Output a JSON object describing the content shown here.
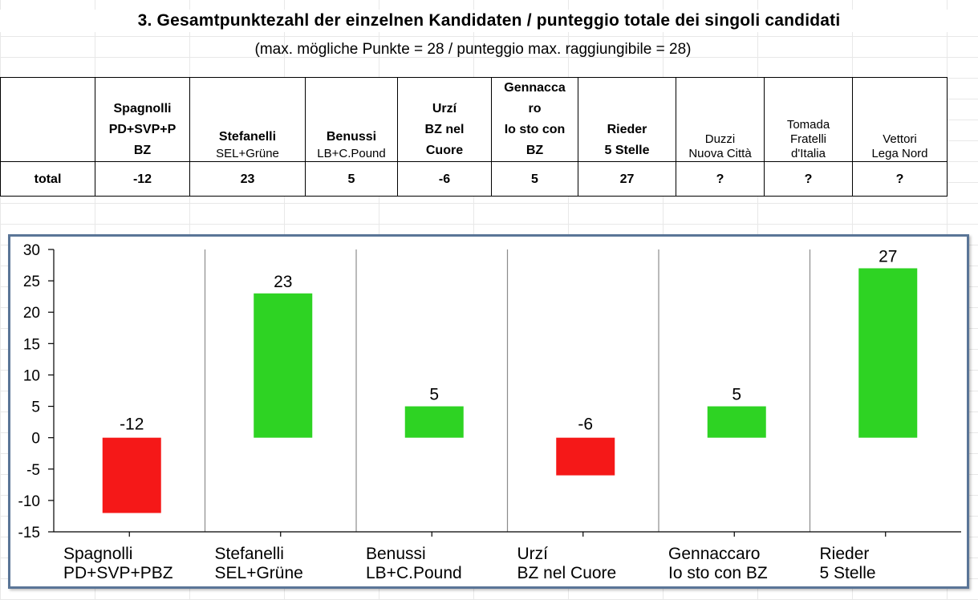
{
  "header": {
    "title": "3.  Gesamtpunktezahl der einzelnen Kandidaten  /  punteggio totale dei singoli candidati",
    "subtitle": "(max. mögliche Punkte = 28   /   punteggio max. raggiungibile = 28)"
  },
  "table": {
    "row_label": "total",
    "candidates": [
      {
        "lines": [
          "Spagnolli",
          "PD+SVP+P",
          "BZ"
        ],
        "total": "-12"
      },
      {
        "name": "Stefanelli",
        "party": "SEL+Grüne",
        "total": "23"
      },
      {
        "name": "Benussi",
        "party": "LB+C.Pound",
        "total": "5"
      },
      {
        "lines": [
          "Urzí",
          "BZ nel",
          "Cuore"
        ],
        "total": "-6"
      },
      {
        "lines": [
          "Gennacca",
          "ro",
          "Io sto con",
          "BZ"
        ],
        "total": "5"
      },
      {
        "lines": [
          "Rieder",
          "5 Stelle"
        ],
        "total": "27"
      },
      {
        "lines": [
          "Duzzi",
          "Nuova Città"
        ],
        "total": "?"
      },
      {
        "lines": [
          "Tomada",
          "Fratelli",
          "d'Italia"
        ],
        "total": "?"
      },
      {
        "lines": [
          "Vettori",
          "Lega Nord"
        ],
        "total": "?"
      }
    ]
  },
  "chart_data": {
    "type": "bar",
    "categories": [
      [
        "Spagnolli",
        "PD+SVP+PBZ"
      ],
      [
        "Stefanelli",
        "SEL+Grüne"
      ],
      [
        "Benussi",
        "LB+C.Pound"
      ],
      [
        "Urzí",
        "BZ nel Cuore"
      ],
      [
        "Gennaccaro",
        "Io sto con BZ"
      ],
      [
        "Rieder",
        "5 Stelle"
      ]
    ],
    "values": [
      -12,
      23,
      5,
      -6,
      5,
      27
    ],
    "ylim": [
      -15,
      30
    ],
    "yticks": [
      30,
      25,
      20,
      15,
      10,
      5,
      0,
      -5,
      -10,
      -15
    ],
    "positive_color": "#2ed323",
    "negative_color": "#f51818",
    "grid": "vertical",
    "legend": "none"
  }
}
